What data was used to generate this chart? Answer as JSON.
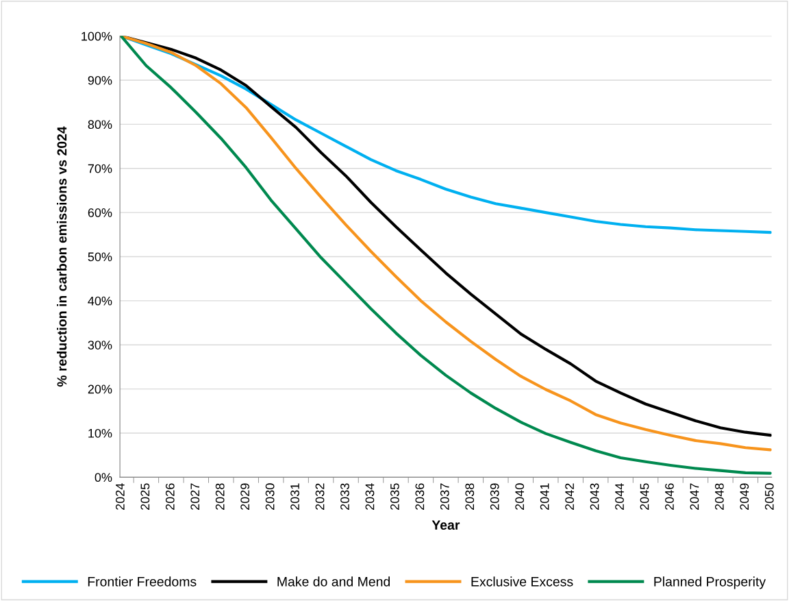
{
  "chart_data": {
    "type": "line",
    "xlabel": "Year",
    "ylabel": "% reduction in carbon emissions vs 2024",
    "categories": [
      "2024",
      "2025",
      "2026",
      "2027",
      "2028",
      "2029",
      "2030",
      "2031",
      "2032",
      "2033",
      "2034",
      "2035",
      "2036",
      "2037",
      "2038",
      "2039",
      "2040",
      "2041",
      "2042",
      "2043",
      "2044",
      "2045",
      "2046",
      "2047",
      "2048",
      "2049",
      "2050"
    ],
    "series": [
      {
        "name": "Frontier Freedoms",
        "color": "#00b0f0",
        "values": [
          100,
          98,
          96,
          93.5,
          91,
          88,
          84.5,
          81,
          78,
          75,
          72,
          69.5,
          67.5,
          65.3,
          63.5,
          62,
          61,
          60,
          59,
          58,
          57.3,
          56.8,
          56.5,
          56.1,
          55.9,
          55.7,
          55.5
        ]
      },
      {
        "name": "Make do and Mend",
        "color": "#000000",
        "values": [
          100,
          98.5,
          97,
          95,
          92.3,
          88.8,
          84,
          79.3,
          73.6,
          68.3,
          62.3,
          56.8,
          51.5,
          46.3,
          41.5,
          37,
          32.5,
          29,
          25.7,
          21.8,
          19.1,
          16.6,
          14.7,
          12.8,
          11.2,
          10.2,
          9.5
        ]
      },
      {
        "name": "Exclusive Excess",
        "color": "#f7941d",
        "values": [
          100,
          98.3,
          96.3,
          93.3,
          89.2,
          83.8,
          77,
          70,
          63.5,
          57.2,
          51.2,
          45.5,
          40,
          35.2,
          30.8,
          26.7,
          22.9,
          19.9,
          17.3,
          14.2,
          12.3,
          10.8,
          9.5,
          8.3,
          7.6,
          6.7,
          6.2
        ]
      },
      {
        "name": "Planned Prosperity",
        "color": "#00894f",
        "values": [
          100,
          93.3,
          88.3,
          82.7,
          76.8,
          70.2,
          62.8,
          56.3,
          49.8,
          44,
          38.2,
          32.7,
          27.6,
          23.1,
          19.1,
          15.6,
          12.5,
          9.9,
          7.9,
          6,
          4.4,
          3.5,
          2.7,
          2,
          1.5,
          1.0,
          0.9
        ]
      }
    ],
    "ylim": [
      0,
      100
    ],
    "yticks": [
      {
        "value": 0,
        "label": "0%"
      },
      {
        "value": 10,
        "label": "10%"
      },
      {
        "value": 20,
        "label": "20%"
      },
      {
        "value": 30,
        "label": "30%"
      },
      {
        "value": 40,
        "label": "40%"
      },
      {
        "value": 50,
        "label": "50%"
      },
      {
        "value": 60,
        "label": "60%"
      },
      {
        "value": 70,
        "label": "70%"
      },
      {
        "value": 80,
        "label": "80%"
      },
      {
        "value": 90,
        "label": "90%"
      },
      {
        "value": 100,
        "label": "100%"
      }
    ],
    "grid": "y",
    "legend": "bottom",
    "marker": "none",
    "line_style": "solid"
  }
}
